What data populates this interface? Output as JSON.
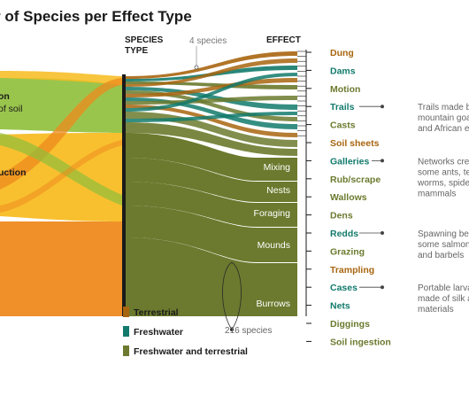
{
  "title": "r of Species per Effect Type",
  "headers": {
    "species_type_line1": "SPECIES",
    "species_type_line2": "TYPE",
    "effect": "EFFECT"
  },
  "annotations": {
    "four_species": "4 species",
    "two_sixteen_species": "216 species"
  },
  "left_labels": {
    "a_line1": "on",
    "a_line2": "of soil",
    "b_line1": "uction"
  },
  "inner_labels": [
    "Mixing",
    "Nests",
    "Foraging",
    "Mounds",
    "Burrows"
  ],
  "effects": [
    {
      "label": "Dung",
      "type": "terrestrial"
    },
    {
      "label": "Dams",
      "type": "freshwater"
    },
    {
      "label": "Motion",
      "type": "both"
    },
    {
      "label": "Trails",
      "type": "freshwater"
    },
    {
      "label": "Casts",
      "type": "both"
    },
    {
      "label": "Soil sheets",
      "type": "terrestrial"
    },
    {
      "label": "Galleries",
      "type": "freshwater"
    },
    {
      "label": "Rub/scrape",
      "type": "both"
    },
    {
      "label": "Wallows",
      "type": "both"
    },
    {
      "label": "Dens",
      "type": "both"
    },
    {
      "label": "Redds",
      "type": "freshwater"
    },
    {
      "label": "Grazing",
      "type": "both"
    },
    {
      "label": "Trampling",
      "type": "terrestrial"
    },
    {
      "label": "Cases",
      "type": "freshwater"
    },
    {
      "label": "Nets",
      "type": "freshwater"
    },
    {
      "label": "Diggings",
      "type": "both"
    },
    {
      "label": "Soil ingestion",
      "type": "both"
    }
  ],
  "notes": [
    {
      "effect": "Trails",
      "lines": [
        "Trails made b",
        "mountain goa",
        "and African e"
      ]
    },
    {
      "effect": "Galleries",
      "lines": [
        "Networks cre",
        "some ants, te",
        "worms, spide",
        "mammals"
      ]
    },
    {
      "effect": "Redds",
      "lines": [
        "Spawning be",
        "some salmon",
        "and barbels"
      ]
    },
    {
      "effect": "Cases",
      "lines": [
        "Portable larva",
        "made of silk a",
        "materials"
      ]
    }
  ],
  "legend": [
    {
      "label": "Terrestrial",
      "color": "#a8650f"
    },
    {
      "label": "Freshwater",
      "color": "#127a6c"
    },
    {
      "label": "Freshwater and terrestrial",
      "color": "#6b7a2e"
    }
  ],
  "colors": {
    "terrestrial": "#a8650f",
    "freshwater": "#127a6c",
    "both": "#6b7a2e",
    "flow_orange": "#ee8a1e",
    "flow_yellow": "#f7bb1d",
    "flow_green": "#8fbf3a"
  }
}
